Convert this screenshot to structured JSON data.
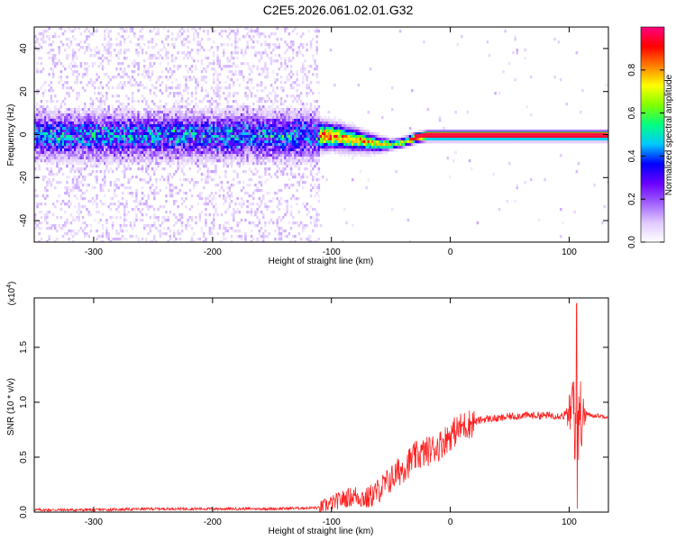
{
  "title": "C2E5.2026.061.02.01.G32",
  "chart_data": [
    {
      "type": "heatmap",
      "xlabel": "Height of straight line (km)",
      "ylabel": "Frequency (Hz)",
      "xlim": [
        -350,
        133
      ],
      "ylim": [
        -50,
        50
      ],
      "xticks": [
        -300,
        -200,
        -100,
        0,
        100
      ],
      "yticks": [
        -40,
        -20,
        0,
        20,
        40
      ],
      "colorbar": {
        "label": "Normalized spectral amplitude",
        "range": [
          0,
          1
        ],
        "ticks": [
          "0.0",
          "0.2",
          "0.4",
          "0.6",
          "0.8"
        ],
        "tick_values": [
          0,
          0.2,
          0.4,
          0.6,
          0.8
        ],
        "colors": [
          "#ffffff",
          "#e0c8ff",
          "#a060ff",
          "#6a00ff",
          "#0000ff",
          "#00c8ff",
          "#00ff80",
          "#80ff00",
          "#ffff00",
          "#ff8000",
          "#ff0000",
          "#ff0080"
        ]
      },
      "ridge": [
        [
          -350,
          0
        ],
        [
          -300,
          0
        ],
        [
          -200,
          0
        ],
        [
          -110,
          0
        ],
        [
          -100,
          0
        ],
        [
          -90,
          -1
        ],
        [
          -80,
          -2
        ],
        [
          -70,
          -3
        ],
        [
          -60,
          -4
        ],
        [
          -50,
          -4
        ],
        [
          -40,
          -3
        ],
        [
          -30,
          -1
        ],
        [
          -20,
          0
        ],
        [
          0,
          0
        ],
        [
          50,
          0
        ],
        [
          95,
          0
        ],
        [
          100,
          0
        ],
        [
          110,
          0
        ],
        [
          133,
          0
        ]
      ],
      "noise_until": -110
    },
    {
      "type": "line",
      "xlabel": "Height of straight line (km)",
      "ylabel": "SNR (10 * v/v)",
      "scale_label": "(x10",
      "scale_exp": "4",
      "scale_close": ")",
      "xlim": [
        -350,
        133
      ],
      "ylim": [
        0,
        1.95
      ],
      "xticks": [
        -300,
        -200,
        -100,
        0,
        100
      ],
      "yticks": [
        "0.0",
        "0.5",
        "1.0",
        "1.5"
      ],
      "ytick_values": [
        0,
        0.5,
        1.0,
        1.5
      ],
      "series": [
        {
          "color": "#ff2020",
          "x": [
            -350,
            -300,
            -250,
            -200,
            -150,
            -110,
            -100,
            -90,
            -80,
            -70,
            -60,
            -50,
            -40,
            -30,
            -20,
            -10,
            0,
            10,
            20,
            30,
            40,
            50,
            60,
            70,
            80,
            90,
            100,
            105,
            110,
            115,
            120,
            133
          ],
          "y": [
            0.02,
            0.02,
            0.03,
            0.03,
            0.03,
            0.04,
            0.08,
            0.12,
            0.15,
            0.12,
            0.2,
            0.3,
            0.4,
            0.5,
            0.55,
            0.6,
            0.7,
            0.78,
            0.82,
            0.85,
            0.85,
            0.87,
            0.88,
            0.88,
            0.88,
            0.88,
            0.88,
            1.0,
            0.86,
            0.89,
            0.88,
            0.87
          ]
        }
      ]
    }
  ]
}
